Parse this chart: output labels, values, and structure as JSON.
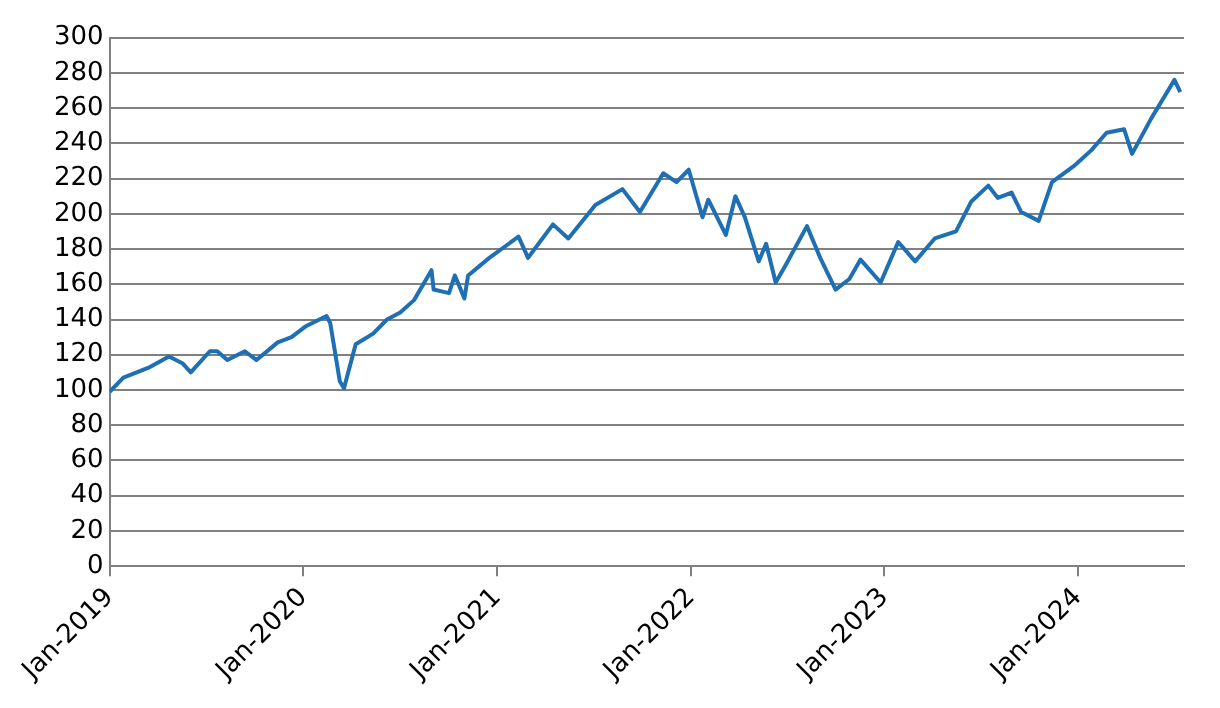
{
  "chart_data": {
    "type": "line",
    "color": "#1f6fb5",
    "line_style": "solid",
    "marker": "none",
    "grid": "y",
    "legend": false,
    "xlim": [
      "2019-01-01",
      "2024-07-19"
    ],
    "xticks": [
      {
        "value": "2019-01-01",
        "label": "Jan-2019"
      },
      {
        "value": "2020-01-01",
        "label": "Jan-2020"
      },
      {
        "value": "2021-01-01",
        "label": "Jan-2021"
      },
      {
        "value": "2022-01-01",
        "label": "Jan-2022"
      },
      {
        "value": "2023-01-01",
        "label": "Jan-2023"
      },
      {
        "value": "2024-01-01",
        "label": "Jan-2024"
      }
    ],
    "ylim": [
      0,
      300
    ],
    "yticks": [
      0,
      20,
      40,
      60,
      80,
      100,
      120,
      140,
      160,
      180,
      200,
      220,
      240,
      260,
      280,
      300
    ],
    "x": [
      "2019-01-01",
      "2019-01-27",
      "2019-03-18",
      "2019-04-23",
      "2019-05-19",
      "2019-06-03",
      "2019-07-09",
      "2019-07-23",
      "2019-08-11",
      "2019-09-13",
      "2019-10-05",
      "2019-11-14",
      "2019-12-10",
      "2020-01-05",
      "2020-02-14",
      "2020-02-21",
      "2020-03-10",
      "2020-03-18",
      "2020-03-25",
      "2020-04-09",
      "2020-05-12",
      "2020-06-07",
      "2020-07-02",
      "2020-07-28",
      "2020-08-30",
      "2020-09-03",
      "2020-10-02",
      "2020-10-13",
      "2020-10-31",
      "2020-11-07",
      "2020-12-17",
      "2021-02-10",
      "2021-02-28",
      "2021-04-16",
      "2021-05-15",
      "2021-07-05",
      "2021-08-25",
      "2021-09-27",
      "2021-11-10",
      "2021-12-05",
      "2021-12-28",
      "2022-01-23",
      "2022-02-03",
      "2022-03-08",
      "2022-03-26",
      "2022-04-13",
      "2022-05-09",
      "2022-05-23",
      "2022-06-10",
      "2022-06-29",
      "2022-08-08",
      "2022-09-02",
      "2022-10-01",
      "2022-10-27",
      "2022-11-17",
      "2022-12-25",
      "2023-01-27",
      "2023-02-28",
      "2023-04-06",
      "2023-05-16",
      "2023-06-14",
      "2023-07-16",
      "2023-08-03",
      "2023-08-29",
      "2023-09-16",
      "2023-10-19",
      "2023-11-13",
      "2023-12-24",
      "2024-01-26",
      "2024-02-24",
      "2024-03-28",
      "2024-04-12",
      "2024-05-18",
      "2024-06-13",
      "2024-07-01",
      "2024-07-12"
    ],
    "values": [
      99,
      107,
      113,
      119,
      115,
      110,
      122,
      122,
      117,
      122,
      117,
      127,
      130,
      136,
      142,
      138,
      105,
      101,
      109,
      126,
      132,
      140,
      144,
      151,
      168,
      157,
      155,
      165,
      152,
      165,
      175,
      187,
      175,
      194,
      186,
      205,
      214,
      201,
      223,
      218,
      225,
      198,
      208,
      188,
      210,
      198,
      173,
      183,
      161,
      171,
      193,
      175,
      157,
      163,
      174,
      161,
      184,
      173,
      186,
      190,
      207,
      216,
      209,
      212,
      201,
      196,
      218,
      227,
      236,
      246,
      248,
      234,
      254,
      267,
      276,
      269
    ]
  }
}
